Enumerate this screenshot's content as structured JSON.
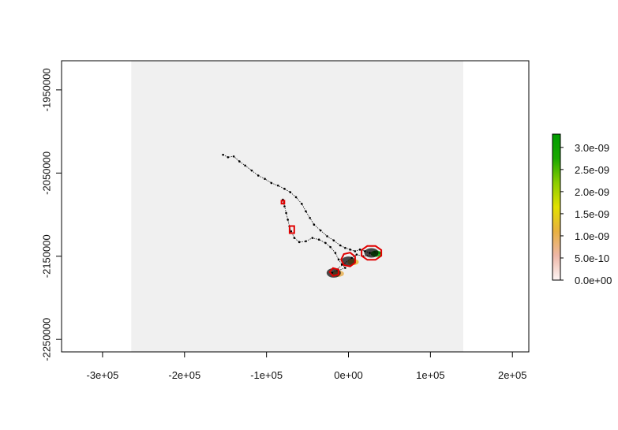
{
  "chart_data": {
    "type": "heatmap",
    "title": "",
    "xlabel": "",
    "ylabel": "",
    "xlim": [
      -350000,
      220000
    ],
    "ylim": [
      -2265000,
      -1915000
    ],
    "x_ticks": [
      -300000,
      -200000,
      -100000,
      0,
      100000,
      200000
    ],
    "x_tick_labels": [
      "-3e+05",
      "-2e+05",
      "-1e+05",
      "0e+00",
      "1e+05",
      "2e+05"
    ],
    "y_ticks": [
      -1950000,
      -2050000,
      -2150000,
      -2250000
    ],
    "y_tick_labels": [
      "-1950000",
      "-2050000",
      "-2150000",
      "-2250000"
    ],
    "raster_extent": {
      "xmin": -265000,
      "xmax": 140000,
      "ymin": -2265000,
      "ymax": -1915000
    },
    "raster_fill": "#f0f0f0",
    "track_points": [
      [
        -153000,
        -2028000
      ],
      [
        -147000,
        -2031000
      ],
      [
        -140000,
        -2030000
      ],
      [
        -133000,
        -2036000
      ],
      [
        -126000,
        -2041000
      ],
      [
        -118000,
        -2047000
      ],
      [
        -110000,
        -2053000
      ],
      [
        -102000,
        -2057000
      ],
      [
        -94000,
        -2062000
      ],
      [
        -86000,
        -2065000
      ],
      [
        -78000,
        -2069000
      ],
      [
        -71000,
        -2073000
      ],
      [
        -64000,
        -2079000
      ],
      [
        -57000,
        -2087000
      ],
      [
        -52000,
        -2096000
      ],
      [
        -47000,
        -2104000
      ],
      [
        -42000,
        -2112000
      ],
      [
        -34000,
        -2119000
      ],
      [
        -26000,
        -2126000
      ],
      [
        -18000,
        -2131000
      ],
      [
        -10000,
        -2137000
      ],
      [
        -4000,
        -2140000
      ],
      [
        2000,
        -2142000
      ],
      [
        8000,
        -2144000
      ],
      [
        14000,
        -2142000
      ],
      [
        20000,
        -2144000
      ],
      [
        26000,
        -2146000
      ],
      [
        32000,
        -2145000
      ],
      [
        -80000,
        -2082000
      ],
      [
        -78000,
        -2090000
      ],
      [
        -76000,
        -2098000
      ],
      [
        -74000,
        -2106000
      ],
      [
        -72000,
        -2114000
      ],
      [
        -70000,
        -2120000
      ],
      [
        -66000,
        -2128000
      ],
      [
        -60000,
        -2133000
      ],
      [
        -52000,
        -2132000
      ],
      [
        -44000,
        -2128000
      ],
      [
        -36000,
        -2130000
      ],
      [
        -28000,
        -2134000
      ],
      [
        -22000,
        -2139000
      ],
      [
        -16000,
        -2146000
      ],
      [
        -12000,
        -2154000
      ],
      [
        -8000,
        -2160000
      ],
      [
        -4000,
        -2164000
      ],
      [
        -14000,
        -2168000
      ],
      [
        -20000,
        -2170000
      ],
      [
        4000,
        -2152000
      ],
      [
        10000,
        -2148000
      ],
      [
        18000,
        -2150000
      ],
      [
        38000,
        -2146000
      ]
    ],
    "kde_colorbar": {
      "labels": [
        "3.0e-09",
        "2.5e-09",
        "2.0e-09",
        "1.5e-09",
        "1.0e-09",
        "5.0e-10",
        "0.0e+00"
      ],
      "values": [
        3e-09,
        2.5e-09,
        2e-09,
        1.5e-09,
        1e-09,
        5e-10,
        0.0
      ],
      "max": 3.3e-09,
      "colors": [
        "#fdf5f5",
        "#eeb7a8",
        "#e8b040",
        "#e2e000",
        "#8ccd00",
        "#1aa800",
        "#009c00"
      ]
    },
    "density_hotspots": [
      {
        "x": 28000,
        "y": -2146000,
        "level": 3.3e-09
      },
      {
        "x": 0,
        "y": -2156000,
        "level": 1.2e-09
      },
      {
        "x": -18000,
        "y": -2170000,
        "level": 1e-09
      }
    ],
    "contour_color": "#e00000",
    "contours": [
      {
        "cx": 28000,
        "cy": -2146000,
        "rx": 13000,
        "ry": 9000,
        "sides": 8
      },
      {
        "cx": 0,
        "cy": -2154000,
        "rx": 9000,
        "ry": 8500,
        "sides": 7
      },
      {
        "cx": -17000,
        "cy": -2169000,
        "rx": 6000,
        "ry": 5000,
        "sides": 5
      },
      {
        "cx": -69000,
        "cy": -2118000,
        "rx": 4000,
        "ry": 6000,
        "sides": 4
      },
      {
        "cx": -80000,
        "cy": -2085000,
        "rx": 2500,
        "ry": 2500,
        "sides": 4
      }
    ],
    "grid": false,
    "legend_position": "right"
  }
}
